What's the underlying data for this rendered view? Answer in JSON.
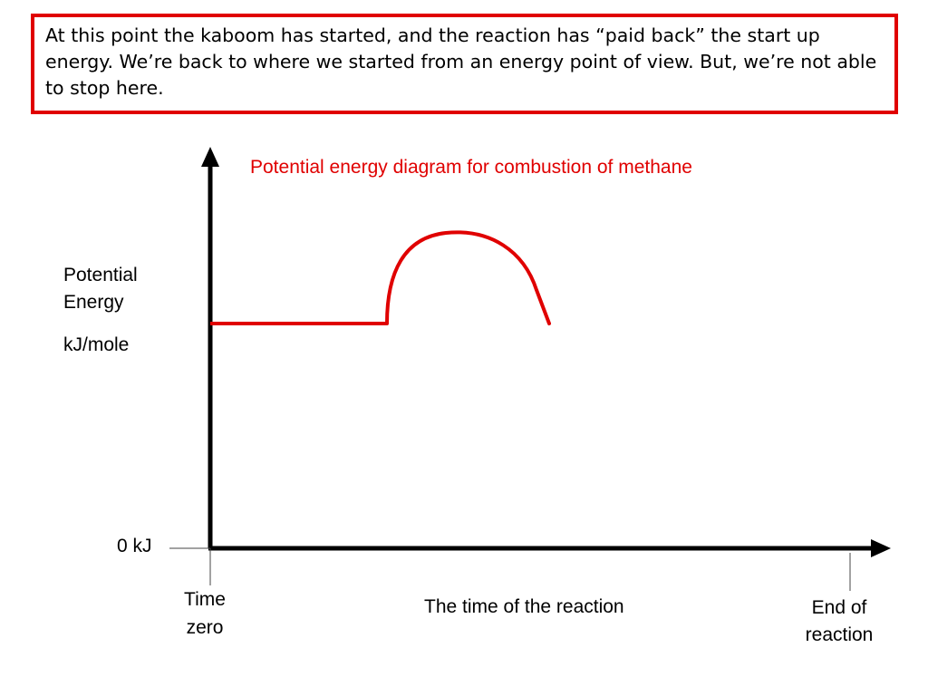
{
  "callout": {
    "text": "At this point the kaboom has started, and the reaction has “paid back” the start up energy.  We’re back to where we started from an energy point of view.  But, we’re not able to stop here."
  },
  "diagram": {
    "title": "Potential energy diagram for combustion of methane",
    "y_label_line1": "Potential",
    "y_label_line2": "Energy",
    "y_unit": "kJ/mole",
    "zero_label": "0 kJ",
    "time_zero_line1": "Time",
    "time_zero_line2": "zero",
    "x_label": "The time of the reaction",
    "end_label_line1": "End of",
    "end_label_line2": "reaction",
    "axis_color": "#000000",
    "curve_color": "#e00000"
  }
}
